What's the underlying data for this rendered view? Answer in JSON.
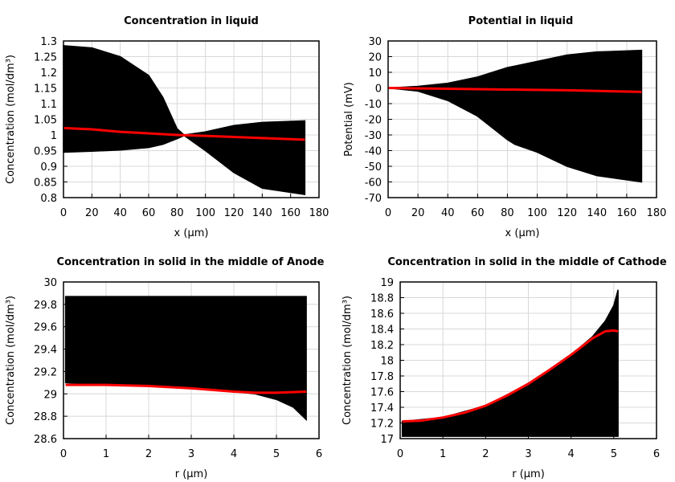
{
  "chart_data": [
    {
      "type": "line",
      "title": "Concentration in liquid",
      "xlabel": "x (µm)",
      "ylabel": "Concentration (mol/dm³)",
      "xlim": [
        0,
        180
      ],
      "ylim": [
        0.8,
        1.3
      ],
      "xticks": [
        "0",
        "20",
        "40",
        "60",
        "80",
        "100",
        "120",
        "140",
        "160",
        "180"
      ],
      "yticks": [
        "0.8",
        "0.85",
        "0.9",
        "0.95",
        "1",
        "1.05",
        "1.1",
        "1.15",
        "1.2",
        "1.25",
        "1.3"
      ],
      "grid": true,
      "band_color": "#000000",
      "highlight_color": "#ff0000",
      "band": {
        "x": [
          0,
          20,
          40,
          60,
          70,
          80,
          85,
          100,
          120,
          140,
          170
        ],
        "upper": [
          1.285,
          1.278,
          1.25,
          1.19,
          1.12,
          1.02,
          1.0,
          1.01,
          1.03,
          1.04,
          1.045
        ],
        "lower": [
          0.945,
          0.948,
          0.952,
          0.96,
          0.97,
          0.988,
          0.998,
          0.95,
          0.88,
          0.83,
          0.81
        ]
      },
      "highlight": {
        "x": [
          0,
          20,
          40,
          60,
          80,
          100,
          140,
          170
        ],
        "y": [
          1.022,
          1.018,
          1.01,
          1.005,
          1.0,
          0.997,
          0.99,
          0.985
        ]
      }
    },
    {
      "type": "line",
      "title": "Potential in liquid",
      "xlabel": "x (µm)",
      "ylabel": "Potential (mV)",
      "xlim": [
        0,
        180
      ],
      "ylim": [
        -70,
        30
      ],
      "xticks": [
        "0",
        "20",
        "40",
        "60",
        "80",
        "100",
        "120",
        "140",
        "160",
        "180"
      ],
      "yticks": [
        "-70",
        "-60",
        "-50",
        "-40",
        "-30",
        "-20",
        "-10",
        "0",
        "10",
        "20",
        "30"
      ],
      "grid": true,
      "band_color": "#000000",
      "highlight_color": "#ff0000",
      "band": {
        "x": [
          0,
          20,
          40,
          60,
          80,
          85,
          100,
          120,
          140,
          170
        ],
        "upper": [
          0,
          1,
          3,
          7,
          13,
          14,
          17,
          21,
          23,
          24
        ],
        "lower": [
          0,
          -2,
          -8,
          -18,
          -33,
          -36,
          -41,
          -50,
          -56,
          -60
        ]
      },
      "highlight": {
        "x": [
          0,
          40,
          80,
          120,
          170
        ],
        "y": [
          0,
          -0.5,
          -1,
          -1.5,
          -2.5
        ]
      }
    },
    {
      "type": "line",
      "title": "Concentration in solid in the middle of Anode",
      "xlabel": "r (µm)",
      "ylabel": "Concentration (mol/dm³)",
      "xlim": [
        0,
        6
      ],
      "ylim": [
        28.6,
        30
      ],
      "xticks": [
        "0",
        "1",
        "2",
        "3",
        "4",
        "5",
        "6"
      ],
      "yticks": [
        "28.6",
        "28.8",
        "29",
        "29.2",
        "29.4",
        "29.6",
        "29.8",
        "30"
      ],
      "grid": true,
      "band_color": "#000000",
      "highlight_color": "#ff0000",
      "band": {
        "x": [
          0.05,
          1,
          2,
          3,
          4,
          4.5,
          5,
          5.4,
          5.7
        ],
        "upper": [
          29.87,
          29.87,
          29.87,
          29.87,
          29.87,
          29.87,
          29.87,
          29.87,
          29.87
        ],
        "lower": [
          29.1,
          29.08,
          29.07,
          29.05,
          29.02,
          29.0,
          28.95,
          28.88,
          28.77
        ]
      },
      "highlight": {
        "x": [
          0.05,
          1,
          2,
          3,
          4,
          4.5,
          5,
          5.7
        ],
        "y": [
          29.08,
          29.08,
          29.07,
          29.05,
          29.02,
          29.01,
          29.01,
          29.02
        ]
      }
    },
    {
      "type": "line",
      "title": "Concentration in solid in the middle of Cathode",
      "xlabel": "r (µm)",
      "ylabel": "Concentration (mol/dm³)",
      "xlim": [
        0,
        6
      ],
      "ylim": [
        17,
        19
      ],
      "xticks": [
        "0",
        "1",
        "2",
        "3",
        "4",
        "5",
        "6"
      ],
      "yticks": [
        "17",
        "17.2",
        "17.4",
        "17.6",
        "17.8",
        "18",
        "18.2",
        "18.4",
        "18.6",
        "18.8",
        "19"
      ],
      "grid": true,
      "band_color": "#000000",
      "highlight_color": "#ff0000",
      "band": {
        "x": [
          0.05,
          1,
          2,
          3,
          4,
          4.5,
          4.8,
          5,
          5.1
        ],
        "upper": [
          17.22,
          17.27,
          17.42,
          17.7,
          18.07,
          18.3,
          18.5,
          18.7,
          18.9
        ],
        "lower": [
          17.03,
          17.03,
          17.03,
          17.03,
          17.03,
          17.03,
          17.03,
          17.03,
          17.03
        ]
      },
      "highlight": {
        "x": [
          0.05,
          0.5,
          1,
          1.5,
          2,
          2.5,
          3,
          3.5,
          4,
          4.5,
          4.8,
          5,
          5.1
        ],
        "y": [
          17.22,
          17.23,
          17.27,
          17.33,
          17.42,
          17.55,
          17.7,
          17.88,
          18.07,
          18.28,
          18.37,
          18.38,
          18.37
        ]
      }
    }
  ]
}
